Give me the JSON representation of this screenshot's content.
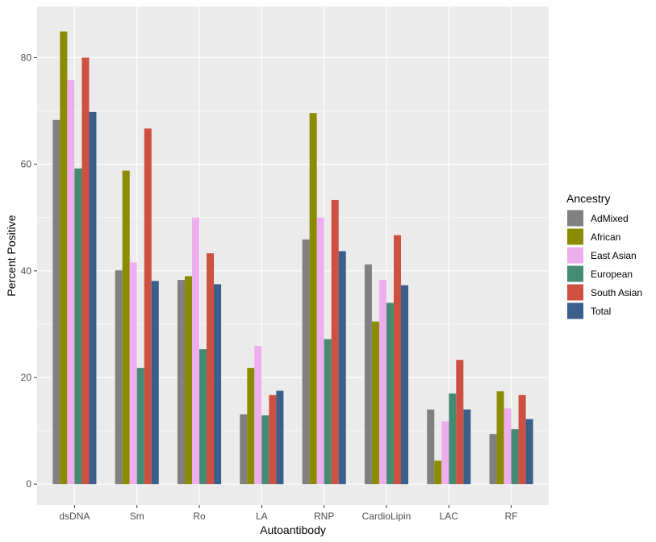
{
  "chart_data": {
    "type": "bar",
    "xlabel": "Autoantibody",
    "ylabel": "Percent Positive",
    "categories": [
      "dsDNA",
      "Sm",
      "Ro",
      "LA",
      "RNP",
      "CardioLipin",
      "LAC",
      "RF"
    ],
    "ylim": [
      -3.9,
      89.6
    ],
    "yticks": [
      0,
      20,
      40,
      60,
      80
    ],
    "grid": true,
    "legend": {
      "title": "Ancestry",
      "position": "right"
    },
    "series": [
      {
        "name": "AdMixed",
        "color": "#808080",
        "values": [
          68.3,
          40.1,
          38.3,
          13.1,
          45.9,
          41.2,
          14.0,
          9.4
        ]
      },
      {
        "name": "African",
        "color": "#8B8B00",
        "values": [
          84.9,
          58.8,
          39.0,
          21.8,
          69.6,
          30.5,
          4.4,
          17.4
        ]
      },
      {
        "name": "East Asian",
        "color": "#EEAEEE",
        "values": [
          75.8,
          41.6,
          50.0,
          25.9,
          50.0,
          38.3,
          11.8,
          14.2
        ]
      },
      {
        "name": "European",
        "color": "#458B74",
        "values": [
          59.2,
          21.8,
          25.3,
          12.9,
          27.2,
          34.0,
          17.0,
          10.3
        ]
      },
      {
        "name": "South Asian",
        "color": "#CD5040",
        "values": [
          80.0,
          66.7,
          43.3,
          16.7,
          53.3,
          46.7,
          23.3,
          16.7
        ]
      },
      {
        "name": "Total",
        "color": "#3A5F8B",
        "values": [
          69.8,
          38.1,
          37.5,
          17.5,
          43.7,
          37.3,
          14.0,
          12.2
        ]
      }
    ]
  }
}
